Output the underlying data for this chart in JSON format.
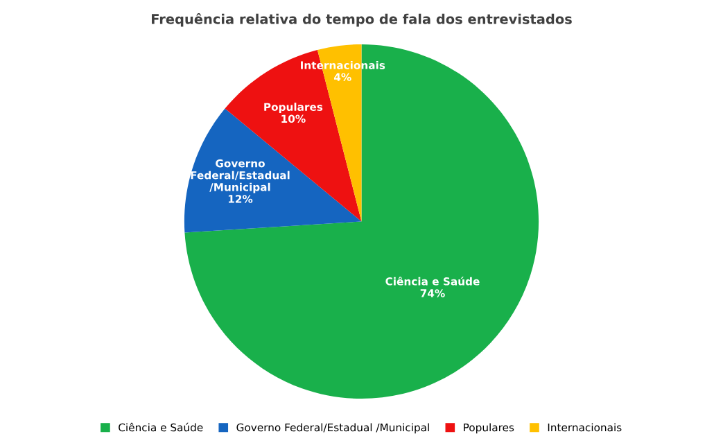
{
  "chart_data": {
    "type": "pie",
    "title": "Frequência relativa do tempo de fala dos entrevistados",
    "categories": [
      "Ciência e Saúde",
      "Governo Federal/Estadual /Municipal",
      "Populares",
      "Internacionais"
    ],
    "values": [
      74,
      12,
      10,
      4
    ],
    "colors": [
      "#19b04b",
      "#1565c0",
      "#ee1111",
      "#ffc000"
    ],
    "value_labels": [
      "74%",
      "12%",
      "10%",
      "4%"
    ],
    "legend": "bottom"
  }
}
